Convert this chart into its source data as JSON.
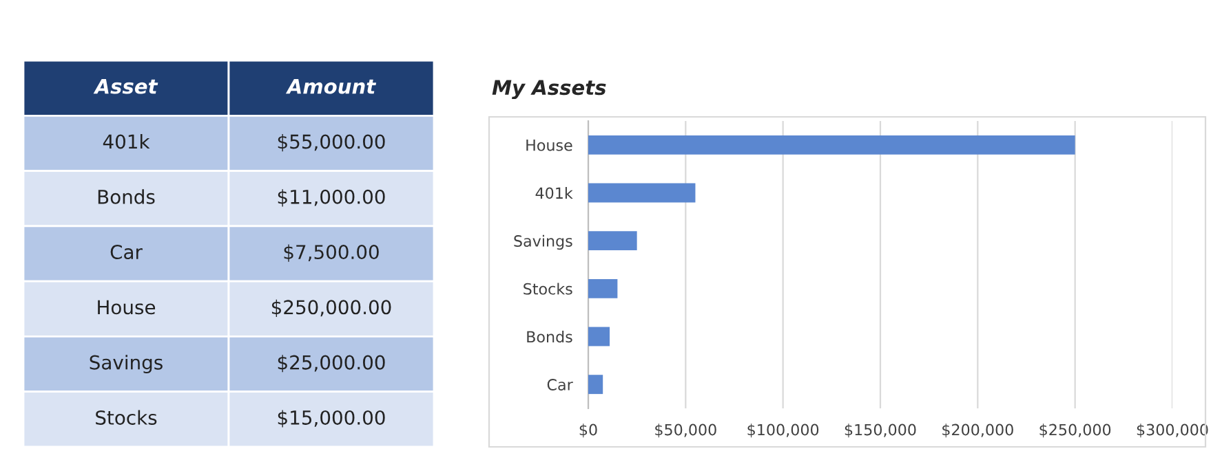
{
  "chart_data": [
    {
      "type": "other",
      "categories": [
        "Asset",
        "Amount"
      ],
      "annotations": [
        "401k",
        "$55,000.00",
        "Bonds",
        "$11,000.00",
        "Car",
        "$7,500.00",
        "House",
        "$250,000.00",
        "Savings",
        "$25,000.00",
        "Stocks",
        "$15,000.00"
      ]
    },
    {
      "type": "bar",
      "orientation": "horizontal",
      "title": "My Assets",
      "categories": [
        "House",
        "401k",
        "Savings",
        "Stocks",
        "Bonds",
        "Car"
      ],
      "values": [
        250000,
        55000,
        25000,
        15000,
        11000,
        7500
      ],
      "color": "#5b87d0",
      "xlim": [
        0,
        300000
      ],
      "xticks": [
        {
          "value": 0,
          "label": "$0"
        },
        {
          "value": 50000,
          "label": "$50,000"
        },
        {
          "value": 100000,
          "label": "$100,000"
        },
        {
          "value": 150000,
          "label": "$150,000"
        },
        {
          "value": 200000,
          "label": "$200,000"
        },
        {
          "value": 250000,
          "label": "$250,000"
        },
        {
          "value": 300000,
          "label": "$300,000"
        }
      ],
      "grid": "x"
    }
  ]
}
